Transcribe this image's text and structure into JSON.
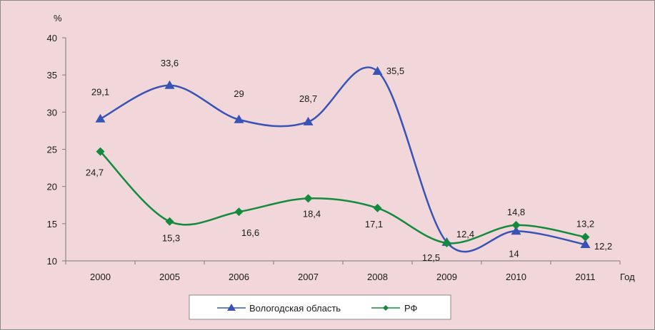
{
  "chart_data": {
    "type": "line",
    "y_unit_label": "%",
    "x_axis_suffix": "Год",
    "categories": [
      "2000",
      "2005",
      "2006",
      "2007",
      "2008",
      "2009",
      "2010",
      "2011"
    ],
    "ylim": [
      10,
      40
    ],
    "yticks": [
      10,
      15,
      20,
      25,
      30,
      35,
      40
    ],
    "ytick_labels": [
      "10",
      "15",
      "20",
      "25",
      "30",
      "35",
      "40"
    ],
    "grid": false,
    "legend_position": "bottom",
    "series": [
      {
        "name": "Вологодская область",
        "color": "#3653b5",
        "marker": "triangle",
        "values": [
          29.1,
          33.6,
          29,
          28.7,
          35.5,
          12.5,
          14,
          12.2
        ],
        "labels": [
          "29,1",
          "33,6",
          "29",
          "28,7",
          "35,5",
          "12,5",
          "14",
          "12,2"
        ]
      },
      {
        "name": "РФ",
        "color": "#138a3c",
        "marker": "diamond",
        "values": [
          24.7,
          15.3,
          16.6,
          18.4,
          17.1,
          12.4,
          14.8,
          13.2
        ],
        "labels": [
          "24,7",
          "15,3",
          "16,6",
          "18,4",
          "17,1",
          "12,4",
          "14,8",
          "13,2"
        ]
      }
    ]
  }
}
